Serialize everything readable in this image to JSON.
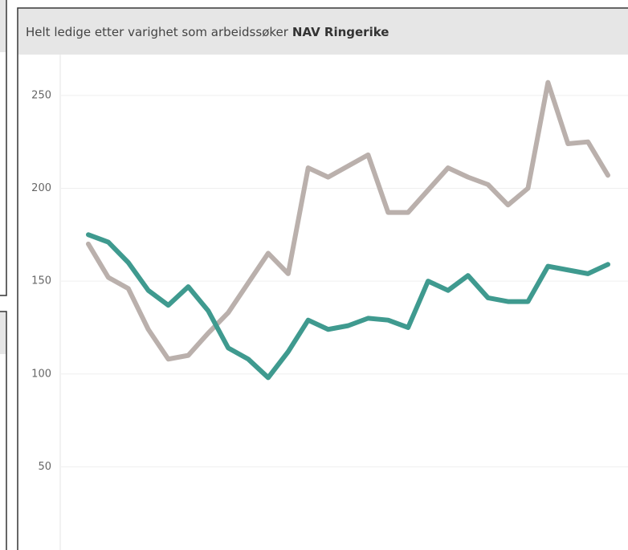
{
  "chart_data": {
    "type": "line",
    "title": "Helt ledige etter varighet som arbeidssøker",
    "title_emphasis": "NAV Ringerike",
    "categories": [
      null,
      null,
      null,
      null,
      null,
      null,
      null,
      null,
      null,
      null,
      null,
      null,
      null,
      null,
      null,
      null,
      null,
      null,
      null,
      null,
      null,
      null,
      null,
      null,
      null,
      null,
      null
    ],
    "series": [
      {
        "color": "#bab0ac",
        "values": [
          170,
          152,
          146,
          124,
          108,
          110,
          122,
          133,
          149,
          165,
          154,
          211,
          206,
          212,
          218,
          187,
          187,
          199,
          211,
          206,
          202,
          191,
          200,
          257,
          224,
          225,
          207
        ]
      },
      {
        "color": "#3f9a8f",
        "values": [
          175,
          171,
          160,
          145,
          137,
          147,
          134,
          114,
          108,
          98,
          112,
          129,
          124,
          126,
          130,
          129,
          125,
          150,
          145,
          153,
          141,
          139,
          139,
          158,
          156,
          154,
          159
        ]
      }
    ],
    "ylim": [
      0,
      272
    ],
    "yticks": [
      0,
      50,
      100,
      150,
      200,
      250
    ],
    "grid": true
  }
}
